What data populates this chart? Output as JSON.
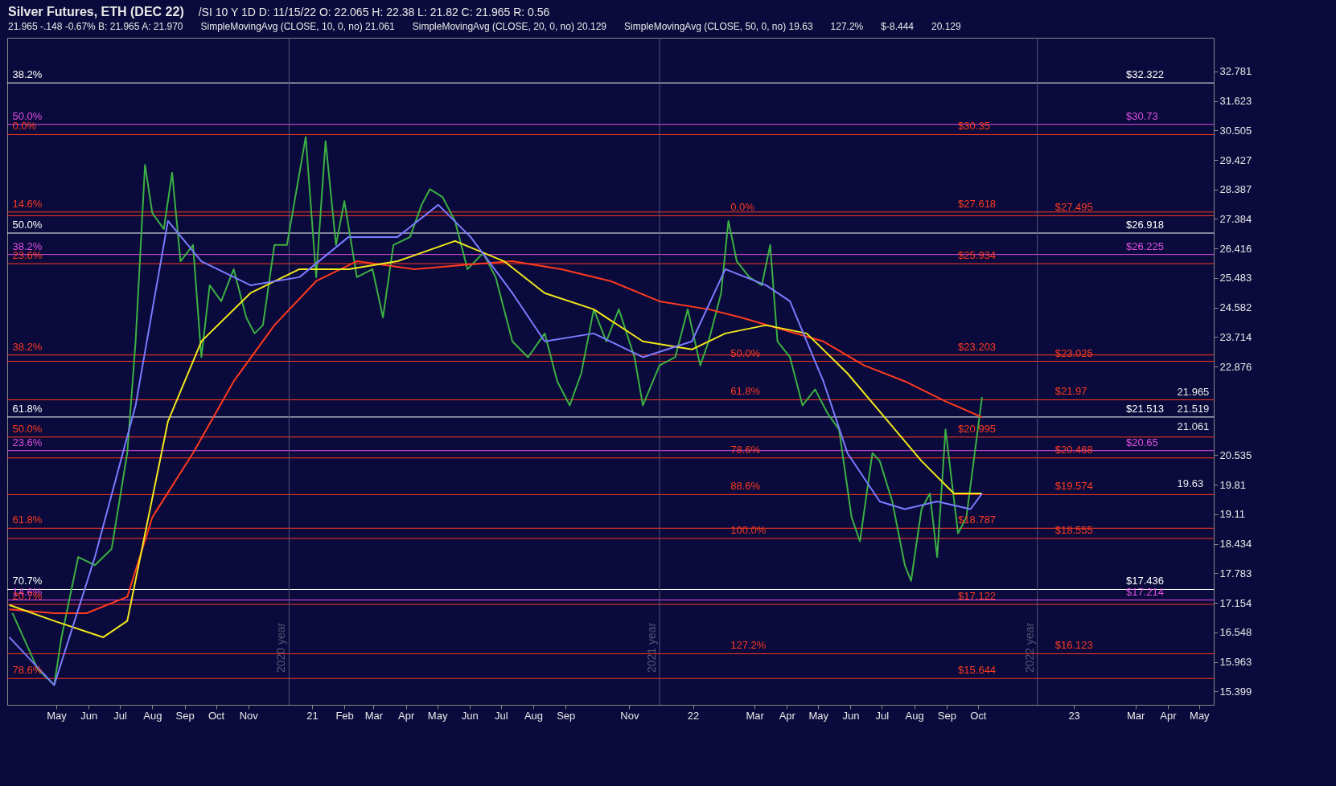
{
  "chart_data": {
    "type": "line",
    "title": "Silver Futures, ETH (DEC 22)",
    "subtitle": "/SI 10 Y 1D  D: 11/15/22  O: 22.065  H: 22.38  L: 21.82  C: 21.965  R: 0.56",
    "log": true,
    "xlim": [
      "2020-03-15",
      "2023-05-15"
    ],
    "ylim": [
      15.15,
      34.15
    ],
    "xticks": [
      {
        "value": "2020-05-01",
        "label": "May"
      },
      {
        "value": "2020-06-01",
        "label": "Jun"
      },
      {
        "value": "2020-07-01",
        "label": "Jul"
      },
      {
        "value": "2020-08-01",
        "label": "Aug"
      },
      {
        "value": "2020-09-01",
        "label": "Sep"
      },
      {
        "value": "2020-10-01",
        "label": "Oct"
      },
      {
        "value": "2020-11-01",
        "label": "Nov"
      },
      {
        "value": "2021-01-01",
        "label": "21"
      },
      {
        "value": "2021-02-01",
        "label": "Feb"
      },
      {
        "value": "2021-03-01",
        "label": "Mar"
      },
      {
        "value": "2021-04-01",
        "label": "Apr"
      },
      {
        "value": "2021-05-01",
        "label": "May"
      },
      {
        "value": "2021-06-01",
        "label": "Jun"
      },
      {
        "value": "2021-07-01",
        "label": "Jul"
      },
      {
        "value": "2021-08-01",
        "label": "Aug"
      },
      {
        "value": "2021-09-01",
        "label": "Sep"
      },
      {
        "value": "2021-11-01",
        "label": "Nov"
      },
      {
        "value": "2022-01-01",
        "label": "22"
      },
      {
        "value": "2022-03-01",
        "label": "Mar"
      },
      {
        "value": "2022-04-01",
        "label": "Apr"
      },
      {
        "value": "2022-05-01",
        "label": "May"
      },
      {
        "value": "2022-06-01",
        "label": "Jun"
      },
      {
        "value": "2022-07-01",
        "label": "Jul"
      },
      {
        "value": "2022-08-01",
        "label": "Aug"
      },
      {
        "value": "2022-09-01",
        "label": "Sep"
      },
      {
        "value": "2022-10-01",
        "label": "Oct"
      },
      {
        "value": "2023-01-01",
        "label": "23"
      },
      {
        "value": "2023-03-01",
        "label": "Mar"
      },
      {
        "value": "2023-04-01",
        "label": "Apr"
      },
      {
        "value": "2023-05-01",
        "label": "May"
      }
    ],
    "yticks": [
      32.781,
      31.623,
      30.505,
      29.427,
      28.387,
      27.384,
      26.416,
      25.483,
      24.582,
      23.714,
      22.876,
      20.535,
      19.81,
      19.11,
      18.434,
      17.783,
      17.154,
      16.548,
      15.963,
      15.399
    ],
    "series": [
      {
        "color": "#3cb043",
        "x": [
          "2020-03-20",
          "2020-04-13",
          "2020-04-29",
          "2020-05-06",
          "2020-05-22",
          "2020-06-07",
          "2020-06-23",
          "2020-07-08",
          "2020-07-16",
          "2020-07-25",
          "2020-08-01",
          "2020-08-12",
          "2020-08-20",
          "2020-08-28",
          "2020-09-09",
          "2020-09-17",
          "2020-09-25",
          "2020-10-06",
          "2020-10-18",
          "2020-10-30",
          "2020-11-07",
          "2020-11-15",
          "2020-11-26",
          "2020-12-08",
          "2020-12-26",
          "2021-01-05",
          "2021-01-14",
          "2021-01-24",
          "2021-02-01",
          "2021-02-13",
          "2021-02-28",
          "2021-03-10",
          "2021-03-20",
          "2021-04-05",
          "2021-04-16",
          "2021-04-24",
          "2021-05-06",
          "2021-05-18",
          "2021-05-30",
          "2021-06-14",
          "2021-06-26",
          "2021-07-12",
          "2021-07-27",
          "2021-08-12",
          "2021-08-24",
          "2021-09-05",
          "2021-09-16",
          "2021-09-28",
          "2021-10-10",
          "2021-10-22",
          "2021-11-06",
          "2021-11-14",
          "2021-11-30",
          "2021-12-15",
          "2021-12-27",
          "2022-01-08",
          "2022-01-16",
          "2022-01-28",
          "2022-02-04",
          "2022-02-12",
          "2022-02-24",
          "2022-03-08",
          "2022-03-16",
          "2022-03-23",
          "2022-04-04",
          "2022-04-16",
          "2022-04-28",
          "2022-05-10",
          "2022-05-21",
          "2022-06-02",
          "2022-06-10",
          "2022-06-22",
          "2022-06-29",
          "2022-07-11",
          "2022-07-23",
          "2022-07-29",
          "2022-08-08",
          "2022-08-16",
          "2022-08-23",
          "2022-08-31",
          "2022-09-12",
          "2022-09-20",
          "2022-09-28",
          "2022-10-05"
        ],
        "values": [
          16.94,
          15.83,
          15.52,
          16.45,
          18.14,
          17.96,
          18.32,
          20.59,
          23.59,
          29.25,
          27.58,
          27.05,
          28.97,
          26.01,
          26.53,
          23.14,
          25.26,
          24.77,
          25.76,
          24.29,
          23.82,
          24.06,
          26.53,
          26.53,
          30.26,
          25.51,
          30.11,
          26.53,
          27.99,
          25.51,
          25.76,
          24.29,
          26.53,
          26.79,
          27.86,
          28.4,
          28.13,
          27.32,
          25.76,
          26.27,
          25.51,
          23.59,
          23.14,
          23.82,
          22.47,
          21.82,
          22.69,
          24.53,
          23.59,
          24.53,
          23.14,
          21.82,
          22.91,
          23.14,
          24.53,
          22.91,
          23.59,
          25.02,
          27.32,
          26.01,
          25.51,
          25.26,
          26.53,
          23.59,
          23.14,
          21.82,
          22.25,
          21.61,
          21.19,
          19.04,
          18.49,
          20.59,
          20.39,
          19.41,
          17.96,
          17.62,
          19.23,
          19.6,
          18.14,
          21.19,
          18.67,
          19.04,
          20.59,
          22.04
        ]
      },
      {
        "color": "#ff3b1f",
        "x": [
          "2020-03-17",
          "2020-04-29",
          "2020-05-30",
          "2020-07-08",
          "2020-08-01",
          "2020-09-09",
          "2020-10-18",
          "2020-11-26",
          "2021-01-05",
          "2021-02-13",
          "2021-04-09",
          "2021-05-26",
          "2021-07-12",
          "2021-08-28",
          "2021-10-14",
          "2021-11-30",
          "2022-01-16",
          "2022-02-16",
          "2022-03-27",
          "2022-05-06",
          "2022-06-14",
          "2022-07-23",
          "2022-08-31",
          "2022-10-05"
        ],
        "values": [
          17.02,
          16.94,
          16.94,
          17.28,
          19.04,
          20.59,
          22.47,
          24.06,
          25.39,
          26.01,
          25.76,
          25.89,
          26.01,
          25.76,
          25.39,
          24.77,
          24.53,
          24.29,
          23.94,
          23.59,
          22.91,
          22.47,
          21.93,
          21.51
        ]
      },
      {
        "color": "#f2e81c",
        "x": [
          "2020-03-17",
          "2020-04-29",
          "2020-06-15",
          "2020-07-08",
          "2020-08-16",
          "2020-09-17",
          "2020-11-03",
          "2020-12-20",
          "2021-02-05",
          "2021-03-24",
          "2021-05-18",
          "2021-07-04",
          "2021-08-12",
          "2021-09-28",
          "2021-11-14",
          "2021-12-31",
          "2022-02-01",
          "2022-03-12",
          "2022-04-20",
          "2022-05-29",
          "2022-07-07",
          "2022-08-08",
          "2022-09-08",
          "2022-10-05"
        ],
        "values": [
          17.11,
          16.78,
          16.45,
          16.78,
          21.4,
          23.59,
          25.02,
          25.76,
          25.76,
          26.01,
          26.66,
          26.01,
          25.02,
          24.53,
          23.59,
          23.36,
          23.82,
          24.06,
          23.82,
          22.69,
          21.4,
          20.39,
          19.6,
          19.6
        ]
      },
      {
        "color": "#7b7bff",
        "x": [
          "2020-03-17",
          "2020-04-29",
          "2020-06-07",
          "2020-07-16",
          "2020-08-16",
          "2020-09-17",
          "2020-11-03",
          "2020-12-20",
          "2021-02-05",
          "2021-03-24",
          "2021-05-02",
          "2021-06-02",
          "2021-07-12",
          "2021-08-12",
          "2021-09-28",
          "2021-11-14",
          "2021-12-31",
          "2022-02-01",
          "2022-03-12",
          "2022-04-04",
          "2022-05-06",
          "2022-05-29",
          "2022-06-29",
          "2022-07-23",
          "2022-08-23",
          "2022-09-24",
          "2022-10-05"
        ],
        "values": [
          16.45,
          15.52,
          18.14,
          21.82,
          27.32,
          26.01,
          25.26,
          25.51,
          26.79,
          26.79,
          27.86,
          26.79,
          25.02,
          23.59,
          23.82,
          23.14,
          23.59,
          25.76,
          25.26,
          24.77,
          22.47,
          20.59,
          19.41,
          19.23,
          19.41,
          19.23,
          19.6
        ]
      }
    ],
    "ref_lines": [
      {
        "axis": "y",
        "value": 32.322,
        "color": "#ffffff"
      },
      {
        "axis": "y",
        "value": 30.73,
        "color": "#e050e0"
      },
      {
        "axis": "y",
        "value": 30.35,
        "color": "#ff3b1f"
      },
      {
        "axis": "y",
        "value": 27.618,
        "color": "#ff3b1f"
      },
      {
        "axis": "y",
        "value": 27.495,
        "color": "#ff3b1f"
      },
      {
        "axis": "y",
        "value": 26.918,
        "color": "#ffffff"
      },
      {
        "axis": "y",
        "value": 26.225,
        "color": "#e050e0"
      },
      {
        "axis": "y",
        "value": 25.934,
        "color": "#ff3b1f"
      },
      {
        "axis": "y",
        "value": 23.203,
        "color": "#ff3b1f"
      },
      {
        "axis": "y",
        "value": 23.025,
        "color": "#ff3b1f"
      },
      {
        "axis": "y",
        "value": 21.97,
        "color": "#ff3b1f"
      },
      {
        "axis": "y",
        "value": 21.513,
        "color": "#ffffff"
      },
      {
        "axis": "y",
        "value": 20.995,
        "color": "#ff3b1f"
      },
      {
        "axis": "y",
        "value": 20.65,
        "color": "#e050e0"
      },
      {
        "axis": "y",
        "value": 20.468,
        "color": "#ff3b1f"
      },
      {
        "axis": "y",
        "value": 19.574,
        "color": "#ff3b1f"
      },
      {
        "axis": "y",
        "value": 18.787,
        "color": "#ff3b1f"
      },
      {
        "axis": "y",
        "value": 18.555,
        "color": "#ff3b1f"
      },
      {
        "axis": "y",
        "value": 17.436,
        "color": "#ffffff"
      },
      {
        "axis": "y",
        "value": 17.214,
        "color": "#e050e0"
      },
      {
        "axis": "y",
        "value": 17.122,
        "color": "#ff3b1f"
      },
      {
        "axis": "y",
        "value": 16.123,
        "color": "#ff3b1f"
      },
      {
        "axis": "y",
        "value": 15.644,
        "color": "#ff3b1f"
      },
      {
        "axis": "x",
        "value": "2020-12-10",
        "label": "2020 year",
        "color": "#555577"
      },
      {
        "axis": "x",
        "value": "2021-11-30",
        "label": "2021 year",
        "color": "#555577"
      },
      {
        "axis": "x",
        "value": "2022-11-27",
        "label": "2022 year",
        "color": "#555577"
      }
    ],
    "annotations": [
      "21.965  -.148  -0.67%  B: 21.965  A: 21.970",
      "SimpleMovingAvg (CLOSE, 10, 0, no) 21.061",
      "SimpleMovingAvg (CLOSE, 20, 0, no) 20.129",
      "SimpleMovingAvg (CLOSE, 50, 0, no) 19.63",
      {
        "text": "38.2%",
        "x": "2020-03-20",
        "y": 32.322
      },
      {
        "text": "50.0%",
        "x": "2020-03-20",
        "y": 30.73
      },
      {
        "text": "0.0%",
        "x": "2020-03-20",
        "y": 30.35
      },
      {
        "text": "14.6%",
        "x": "2020-03-20",
        "y": 27.618
      },
      {
        "text": "50.0%",
        "x": "2020-03-20",
        "y": 26.918
      },
      {
        "text": "38.2%",
        "x": "2020-03-20",
        "y": 26.225
      },
      {
        "text": "23.6%",
        "x": "2020-03-20",
        "y": 25.934
      },
      {
        "text": "38.2%",
        "x": "2020-03-20",
        "y": 23.203
      },
      {
        "text": "61.8%",
        "x": "2020-03-20",
        "y": 21.513
      },
      {
        "text": "50.0%",
        "x": "2020-03-20",
        "y": 20.995
      },
      {
        "text": "23.6%",
        "x": "2020-03-20",
        "y": 20.65
      },
      {
        "text": "61.8%",
        "x": "2020-03-20",
        "y": 18.787
      },
      {
        "text": "70.7%",
        "x": "2020-03-20",
        "y": 17.436
      },
      {
        "text": "14.6%",
        "x": "2020-03-20",
        "y": 17.214
      },
      {
        "text": "20.7%",
        "x": "2020-03-20",
        "y": 17.122
      },
      {
        "text": "78.6%",
        "x": "2020-03-20",
        "y": 15.644
      },
      "127.2%",
      {
        "text": "0.0%",
        "x": "2022-02-06",
        "y": 27.495
      },
      {
        "text": "50.0%",
        "x": "2022-02-06",
        "y": 23.025
      },
      {
        "text": "61.8%",
        "x": "2022-02-06",
        "y": 21.97
      },
      {
        "text": "78.6%",
        "x": "2022-02-06",
        "y": 20.468
      },
      {
        "text": "88.6%",
        "x": "2022-02-06",
        "y": 19.574
      },
      {
        "text": "100.0%",
        "x": "2022-02-06",
        "y": 18.555
      },
      {
        "text": "127.2%",
        "x": "2022-02-06",
        "y": 16.123
      },
      {
        "text": "$30.35",
        "x": "2022-09-12",
        "y": 30.35
      },
      {
        "text": "$27.618",
        "x": "2022-09-12",
        "y": 27.618
      },
      {
        "text": "$25.934",
        "x": "2022-09-12",
        "y": 25.934
      },
      {
        "text": "$23.203",
        "x": "2022-09-12",
        "y": 23.203
      },
      {
        "text": "$20.995",
        "x": "2022-09-12",
        "y": 20.995
      },
      {
        "text": "$18.787",
        "x": "2022-09-12",
        "y": 18.787
      },
      {
        "text": "$17.122",
        "x": "2022-09-12",
        "y": 17.122
      },
      {
        "text": "$15.644",
        "x": "2022-09-12",
        "y": 15.644
      },
      {
        "text": "$27.495",
        "x": "2022-12-14",
        "y": 27.495
      },
      {
        "text": "$23.025",
        "x": "2022-12-14",
        "y": 23.025
      },
      {
        "text": "$21.97",
        "x": "2022-12-14",
        "y": 21.97
      },
      {
        "text": "$20.468",
        "x": "2022-12-14",
        "y": 20.468
      },
      {
        "text": "$19.574",
        "x": "2022-12-14",
        "y": 19.574
      },
      {
        "text": "$18.555",
        "x": "2022-12-14",
        "y": 18.555
      },
      {
        "text": "$16.123",
        "x": "2022-12-14",
        "y": 16.123
      },
      {
        "text": "$32.322",
        "x": "2023-02-20",
        "y": 32.322
      },
      {
        "text": "$30.73",
        "x": "2023-02-20",
        "y": 30.73
      },
      {
        "text": "$26.918",
        "x": "2023-02-20",
        "y": 26.918
      },
      {
        "text": "$26.225",
        "x": "2023-02-20",
        "y": 26.225
      },
      {
        "text": "$21.513",
        "x": "2023-02-20",
        "y": 21.513
      },
      {
        "text": "$20.65",
        "x": "2023-02-20",
        "y": 20.65
      },
      {
        "text": "$17.436",
        "x": "2023-02-20",
        "y": 17.436
      },
      {
        "text": "$17.214",
        "x": "2023-02-20",
        "y": 17.214
      },
      "$-8.444",
      {
        "text": "21.965",
        "x": "2023-04-10",
        "y": 21.965
      },
      {
        "text": "21.519",
        "x": "2023-04-10",
        "y": 21.519
      },
      {
        "text": "21.061",
        "x": "2023-04-10",
        "y": 21.061
      },
      "20.129",
      {
        "text": "19.63",
        "x": "2023-04-10",
        "y": 19.63
      }
    ]
  }
}
